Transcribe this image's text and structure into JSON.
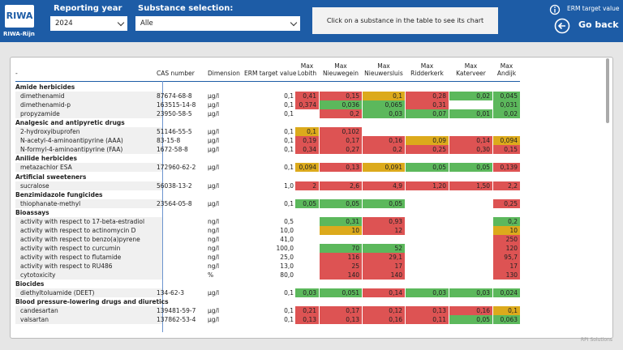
{
  "header": {
    "logo": "RIWA",
    "logo_sub": "RIWA-Rijn",
    "year_label": "Reporting year",
    "year_value": "2024",
    "substance_label": "Substance selection:",
    "substance_value": "Alle",
    "hint": "Click on a substance in the table to see its chart",
    "erm_toggle": "ERM target value",
    "back": "Go back"
  },
  "table": {
    "columns": [
      "-",
      "CAS number",
      "Dimension",
      "ERM target value",
      "Max Lobith",
      "Max Nieuwegein",
      "Max Nieuwersluis",
      "Max Ridderkerk",
      "Max Katerveer",
      "Max Andijk"
    ],
    "groups": [
      {
        "name": "Amide herbicides",
        "rows": [
          {
            "name": "dimethenamid",
            "cas": "87674-68-8",
            "dimension": "µg/l",
            "erm": "0,1",
            "cells": [
              {
                "text": "0,41",
                "color": "#dd5353"
              },
              {
                "text": "0,15",
                "color": "#dd5353"
              },
              {
                "text": "0,1",
                "color": "#dcaa1c"
              },
              {
                "text": "0,28",
                "color": "#dd5353"
              },
              {
                "text": "0,02",
                "color": "#5cb85c"
              },
              {
                "text": "0,045",
                "color": "#5cb85c"
              }
            ]
          },
          {
            "name": "dimethenamid-p",
            "cas": "163515-14-8",
            "dimension": "µg/l",
            "erm": "0,1",
            "cells": [
              {
                "text": "0,374",
                "color": "#dd5353"
              },
              {
                "text": "0,036",
                "color": "#5cb85c"
              },
              {
                "text": "0,065",
                "color": "#5cb85c"
              },
              {
                "text": "0,31",
                "color": "#dd5353"
              },
              null,
              {
                "text": "0,031",
                "color": "#5cb85c"
              }
            ]
          },
          {
            "name": "propyzamide",
            "cas": "23950-58-5",
            "dimension": "µg/l",
            "erm": "0,1",
            "cells": [
              null,
              {
                "text": "0,2",
                "color": "#dd5353"
              },
              {
                "text": "0,03",
                "color": "#5cb85c"
              },
              {
                "text": "0,07",
                "color": "#5cb85c"
              },
              {
                "text": "0,01",
                "color": "#5cb85c"
              },
              {
                "text": "0,02",
                "color": "#5cb85c"
              }
            ]
          }
        ]
      },
      {
        "name": "Analgesic and antipyretic drugs",
        "rows": [
          {
            "name": "2-hydroxyibuprofen",
            "cas": "51146-55-5",
            "dimension": "µg/l",
            "erm": "0,1",
            "cells": [
              {
                "text": "0,1",
                "color": "#dcaa1c"
              },
              {
                "text": "0,102",
                "color": "#dd5353"
              },
              null,
              null,
              null,
              null
            ]
          },
          {
            "name": "N-acetyl-4-aminoantipyrine (AAA)",
            "cas": "83-15-8",
            "dimension": "µg/l",
            "erm": "0,1",
            "cells": [
              {
                "text": "0,19",
                "color": "#dd5353"
              },
              {
                "text": "0,17",
                "color": "#dd5353"
              },
              {
                "text": "0,16",
                "color": "#dd5353"
              },
              {
                "text": "0,09",
                "color": "#dcaa1c"
              },
              {
                "text": "0,14",
                "color": "#dd5353"
              },
              {
                "text": "0,094",
                "color": "#dcaa1c"
              }
            ]
          },
          {
            "name": "N-formyl-4-aminoantipyrine (FAA)",
            "cas": "1672-58-8",
            "dimension": "µg/l",
            "erm": "0,1",
            "cells": [
              {
                "text": "0,34",
                "color": "#dd5353"
              },
              {
                "text": "0,27",
                "color": "#dd5353"
              },
              {
                "text": "0,2",
                "color": "#dd5353"
              },
              {
                "text": "0,25",
                "color": "#dd5353"
              },
              {
                "text": "0,30",
                "color": "#dd5353"
              },
              {
                "text": "0,15",
                "color": "#dd5353"
              }
            ]
          }
        ]
      },
      {
        "name": "Anilide herbicides",
        "rows": [
          {
            "name": "metazachlor ESA",
            "cas": "172960-62-2",
            "dimension": "µg/l",
            "erm": "0,1",
            "cells": [
              {
                "text": "0,094",
                "color": "#dcaa1c"
              },
              {
                "text": "0,13",
                "color": "#dd5353"
              },
              {
                "text": "0,091",
                "color": "#dcaa1c"
              },
              {
                "text": "0,05",
                "color": "#5cb85c"
              },
              {
                "text": "0,05",
                "color": "#5cb85c"
              },
              {
                "text": "0,139",
                "color": "#dd5353"
              }
            ]
          }
        ]
      },
      {
        "name": "Artificial sweeteners",
        "rows": [
          {
            "name": "sucralose",
            "cas": "56038-13-2",
            "dimension": "µg/l",
            "erm": "1,0",
            "cells": [
              {
                "text": "2",
                "color": "#dd5353"
              },
              {
                "text": "2,6",
                "color": "#dd5353"
              },
              {
                "text": "4,9",
                "color": "#dd5353"
              },
              {
                "text": "1,20",
                "color": "#dd5353"
              },
              {
                "text": "1,50",
                "color": "#dd5353"
              },
              {
                "text": "2,2",
                "color": "#dd5353"
              }
            ]
          }
        ]
      },
      {
        "name": "Benzimidazole fungicides",
        "rows": [
          {
            "name": "thiophanate-methyl",
            "cas": "23564-05-8",
            "dimension": "µg/l",
            "erm": "0,1",
            "cells": [
              {
                "text": "0,05",
                "color": "#5cb85c"
              },
              {
                "text": "0,05",
                "color": "#5cb85c"
              },
              {
                "text": "0,05",
                "color": "#5cb85c"
              },
              null,
              null,
              {
                "text": "0,25",
                "color": "#dd5353"
              }
            ]
          }
        ]
      },
      {
        "name": "Bioassays",
        "rows": [
          {
            "name": "activity with respect to 17-beta-estradiol",
            "cas": null,
            "dimension": "ng/l",
            "erm": "0,5",
            "cells": [
              null,
              {
                "text": "0,31",
                "color": "#5cb85c"
              },
              {
                "text": "0,93",
                "color": "#dd5353"
              },
              null,
              null,
              {
                "text": "0,2",
                "color": "#5cb85c"
              }
            ]
          },
          {
            "name": "activity with respect to actinomycin D",
            "cas": null,
            "dimension": "ng/l",
            "erm": "10,0",
            "cells": [
              null,
              {
                "text": "10",
                "color": "#dcaa1c"
              },
              {
                "text": "12",
                "color": "#dd5353"
              },
              null,
              null,
              {
                "text": "10",
                "color": "#dcaa1c"
              }
            ]
          },
          {
            "name": "activity with respect to benzo(a)pyrene",
            "cas": null,
            "dimension": "ng/l",
            "erm": "41,0",
            "cells": [
              null,
              null,
              null,
              null,
              null,
              {
                "text": "250",
                "color": "#dd5353"
              }
            ]
          },
          {
            "name": "activity with respect to curcumin",
            "cas": null,
            "dimension": "ng/l",
            "erm": "100,0",
            "cells": [
              null,
              {
                "text": "70",
                "color": "#5cb85c"
              },
              {
                "text": "52",
                "color": "#5cb85c"
              },
              null,
              null,
              {
                "text": "120",
                "color": "#dd5353"
              }
            ]
          },
          {
            "name": "activity with respect to flutamide",
            "cas": null,
            "dimension": "ng/l",
            "erm": "25,0",
            "cells": [
              null,
              {
                "text": "116",
                "color": "#dd5353"
              },
              {
                "text": "29,1",
                "color": "#dd5353"
              },
              null,
              null,
              {
                "text": "95,7",
                "color": "#dd5353"
              }
            ]
          },
          {
            "name": "activity with respect to RU486",
            "cas": null,
            "dimension": "ng/l",
            "erm": "13,0",
            "cells": [
              null,
              {
                "text": "25",
                "color": "#dd5353"
              },
              {
                "text": "17",
                "color": "#dd5353"
              },
              null,
              null,
              {
                "text": "17",
                "color": "#dd5353"
              }
            ]
          },
          {
            "name": "cytotoxicity",
            "cas": null,
            "dimension": "%",
            "erm": "80,0",
            "cells": [
              null,
              {
                "text": "140",
                "color": "#dd5353"
              },
              {
                "text": "140",
                "color": "#dd5353"
              },
              null,
              null,
              {
                "text": "130",
                "color": "#dd5353"
              }
            ]
          }
        ]
      },
      {
        "name": "Biocides",
        "rows": [
          {
            "name": "diethyltoluamide (DEET)",
            "cas": "134-62-3",
            "dimension": "µg/l",
            "erm": "0,1",
            "cells": [
              {
                "text": "0,03",
                "color": "#5cb85c"
              },
              {
                "text": "0,051",
                "color": "#5cb85c"
              },
              {
                "text": "0,14",
                "color": "#dd5353"
              },
              {
                "text": "0,03",
                "color": "#5cb85c"
              },
              {
                "text": "0,03",
                "color": "#5cb85c"
              },
              {
                "text": "0,024",
                "color": "#5cb85c"
              }
            ]
          }
        ]
      },
      {
        "name": "Blood pressure-lowering drugs and diuretics",
        "rows": [
          {
            "name": "candesartan",
            "cas": "139481-59-7",
            "dimension": "µg/l",
            "erm": "0,1",
            "cells": [
              {
                "text": "0,21",
                "color": "#dd5353"
              },
              {
                "text": "0,17",
                "color": "#dd5353"
              },
              {
                "text": "0,12",
                "color": "#dd5353"
              },
              {
                "text": "0,13",
                "color": "#dd5353"
              },
              {
                "text": "0,16",
                "color": "#dd5353"
              },
              {
                "text": "0,1",
                "color": "#dcaa1c"
              }
            ]
          },
          {
            "name": "valsartan",
            "cas": "137862-53-4",
            "dimension": "µg/l",
            "erm": "0,1",
            "cells": [
              {
                "text": "0,13",
                "color": "#dd5353"
              },
              {
                "text": "0,13",
                "color": "#dd5353"
              },
              {
                "text": "0,16",
                "color": "#dd5353"
              },
              {
                "text": "0,11",
                "color": "#dd5353"
              },
              {
                "text": "0,05",
                "color": "#5cb85c"
              },
              {
                "text": "0,063",
                "color": "#5cb85c"
              }
            ]
          }
        ]
      }
    ]
  },
  "footer": "RPI Solutions"
}
